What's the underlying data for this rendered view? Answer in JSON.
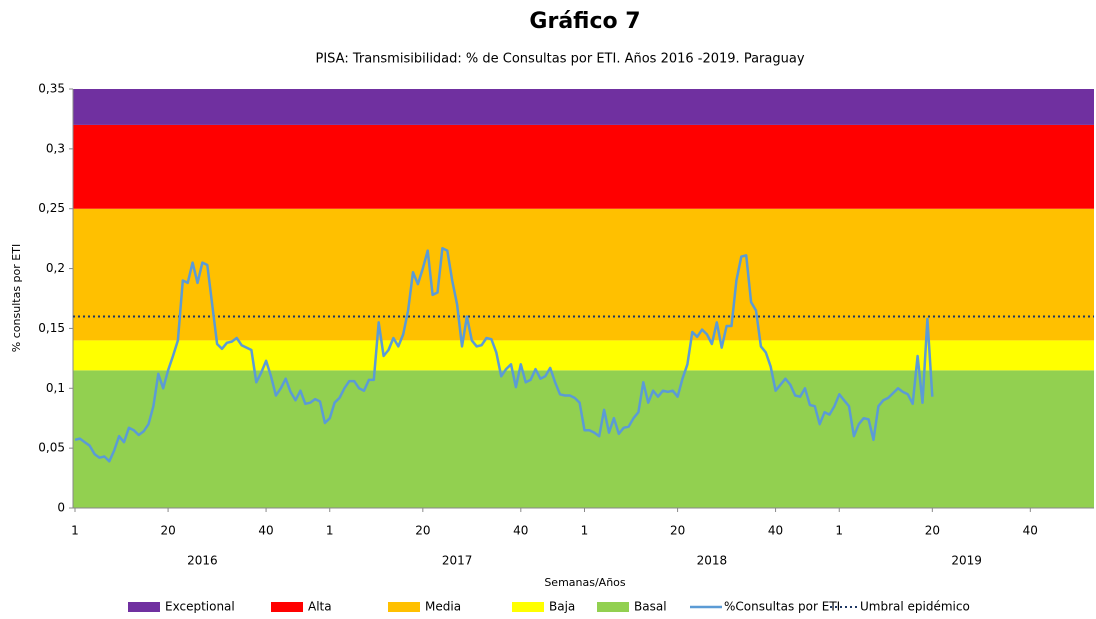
{
  "chart_data": {
    "type": "line",
    "title": "Gráfico 7",
    "subtitle": "PISA: Transmisibilidad: % de Consultas por ETI. Años 2016 -2019. Paraguay",
    "y_label": "% consultas por ETI",
    "x_label": "Semanas/Años",
    "years": [
      "2016",
      "2017",
      "2018",
      "2019"
    ],
    "ylim": [
      0,
      0.35
    ],
    "yticks": [
      0,
      {
        "value": 0.05,
        "label": "0,05"
      },
      {
        "value": 0.1,
        "label": "0,1"
      },
      {
        "value": 0.15,
        "label": "0,15"
      },
      {
        "value": 0.2,
        "label": "0,2"
      },
      {
        "value": 0.25,
        "label": "0,25"
      },
      {
        "value": 0.3,
        "label": "0,3"
      },
      {
        "value": 0.35,
        "label": "0,35"
      }
    ],
    "xlim": [
      1,
      209
    ],
    "xticks": [
      1,
      20,
      40,
      {
        "value": 53,
        "label": "1"
      },
      {
        "value": 72,
        "label": "20"
      },
      {
        "value": 92,
        "label": "40"
      },
      {
        "value": 105,
        "label": "1"
      },
      {
        "value": 124,
        "label": "20"
      },
      {
        "value": 144,
        "label": "40"
      },
      {
        "value": 157,
        "label": "1"
      },
      {
        "value": 176,
        "label": "20"
      },
      {
        "value": 196,
        "label": "40"
      }
    ],
    "bands": [
      {
        "name": "Exceptional",
        "color": "#7030a0",
        "value": 0.03
      },
      {
        "name": "Alta",
        "color": "#ff0000",
        "value": 0.07
      },
      {
        "name": "Media",
        "color": "#ffc000",
        "value": 0.11
      },
      {
        "name": "Baja",
        "color": "#ffff00",
        "value": 0.025
      },
      {
        "name": "Basal",
        "color": "#92d050",
        "value": 0.115
      }
    ],
    "series": [
      {
        "name": "%Consultas por ETI",
        "color": "#5b9bd5",
        "x": [
          1,
          2,
          3,
          4,
          5,
          6,
          7,
          8,
          9,
          10,
          11,
          12,
          13,
          14,
          15,
          16,
          17,
          18,
          19,
          20,
          21,
          22,
          23,
          24,
          25,
          26,
          27,
          28,
          29,
          30,
          31,
          32,
          33,
          34,
          35,
          36,
          37,
          38,
          39,
          40,
          41,
          42,
          43,
          44,
          45,
          46,
          47,
          48,
          49,
          50,
          51,
          52,
          53,
          54,
          55,
          56,
          57,
          58,
          59,
          60,
          61,
          62,
          63,
          64,
          65,
          66,
          67,
          68,
          69,
          70,
          71,
          72,
          73,
          74,
          75,
          76,
          77,
          78,
          79,
          80,
          81,
          82,
          83,
          84,
          85,
          86,
          87,
          88,
          89,
          90,
          91,
          92,
          93,
          94,
          95,
          96,
          97,
          98,
          99,
          100,
          101,
          102,
          103,
          104,
          105,
          106,
          107,
          108,
          109,
          110,
          111,
          112,
          113,
          114,
          115,
          116,
          117,
          118,
          119,
          120,
          121,
          122,
          123,
          124,
          125,
          126,
          127,
          128,
          129,
          130,
          131,
          132,
          133,
          134,
          135,
          136,
          137,
          138,
          139,
          140,
          141,
          142,
          143,
          144,
          145,
          146,
          147,
          148,
          149,
          150,
          151,
          152,
          153,
          154,
          155,
          156,
          157,
          158,
          159,
          160,
          161,
          162,
          163,
          164,
          165,
          166,
          167,
          168,
          169,
          170,
          171,
          172,
          173,
          174,
          175,
          176
        ],
        "values": [
          0.057,
          0.058,
          0.055,
          0.052,
          0.045,
          0.042,
          0.043,
          0.039,
          0.048,
          0.06,
          0.055,
          0.067,
          0.065,
          0.061,
          0.064,
          0.07,
          0.085,
          0.112,
          0.1,
          0.115,
          0.127,
          0.14,
          0.19,
          0.188,
          0.205,
          0.188,
          0.205,
          0.203,
          0.17,
          0.137,
          0.133,
          0.138,
          0.139,
          0.142,
          0.136,
          0.134,
          0.132,
          0.105,
          0.113,
          0.123,
          0.11,
          0.094,
          0.1,
          0.108,
          0.097,
          0.09,
          0.098,
          0.087,
          0.088,
          0.091,
          0.089,
          0.071,
          0.075,
          0.088,
          0.092,
          0.1,
          0.106,
          0.106,
          0.1,
          0.098,
          0.107,
          0.107,
          0.155,
          0.127,
          0.132,
          0.142,
          0.135,
          0.145,
          0.165,
          0.197,
          0.187,
          0.2,
          0.215,
          0.178,
          0.18,
          0.217,
          0.215,
          0.19,
          0.17,
          0.135,
          0.16,
          0.14,
          0.135,
          0.136,
          0.142,
          0.141,
          0.13,
          0.11,
          0.116,
          0.12,
          0.101,
          0.12,
          0.105,
          0.107,
          0.116,
          0.108,
          0.11,
          0.117,
          0.105,
          0.095,
          0.094,
          0.094,
          0.092,
          0.088,
          0.065,
          0.065,
          0.063,
          0.06,
          0.082,
          0.063,
          0.075,
          0.062,
          0.067,
          0.068,
          0.075,
          0.08,
          0.105,
          0.088,
          0.098,
          0.093,
          0.098,
          0.097,
          0.098,
          0.093,
          0.108,
          0.12,
          0.147,
          0.143,
          0.149,
          0.145,
          0.137,
          0.155,
          0.134,
          0.152,
          0.152,
          0.19,
          0.21,
          0.211,
          0.172,
          0.165,
          0.135,
          0.13,
          0.118,
          0.098,
          0.103,
          0.108,
          0.103,
          0.094,
          0.093,
          0.1,
          0.086,
          0.085,
          0.07,
          0.08,
          0.078,
          0.085,
          0.095,
          0.09,
          0.085,
          0.06,
          0.07,
          0.075,
          0.074,
          0.057,
          0.085,
          0.09,
          0.092,
          0.096,
          0.1,
          0.097,
          0.095,
          0.087,
          0.127,
          0.088,
          0.158,
          0.093
        ]
      }
    ],
    "threshold": {
      "name": "Umbral epidémico",
      "value": 0.16,
      "color": "#1f3864"
    }
  }
}
